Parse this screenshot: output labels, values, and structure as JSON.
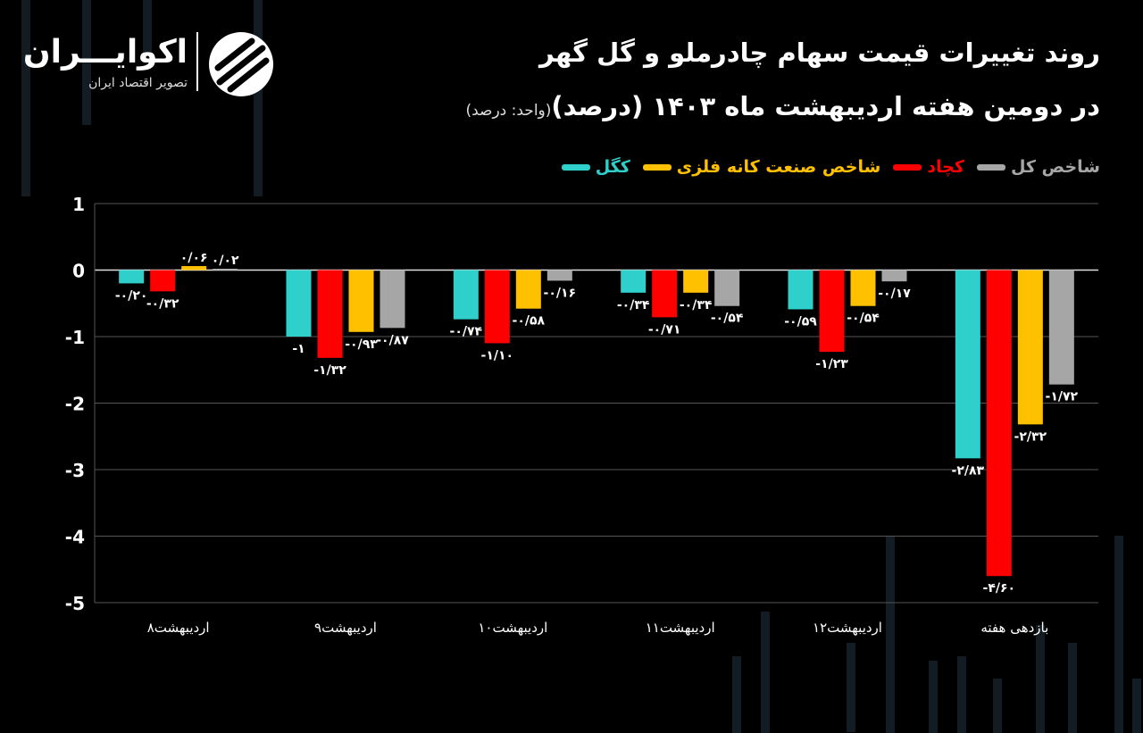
{
  "header": {
    "title": "روند تغییرات قیمت سهام چادرملو و گل گهر",
    "subtitle": "در دومین هفته اردیبهشت ماه ۱۴۰۳ (درصد)",
    "unit_note": "(واحد: درصد)"
  },
  "logo": {
    "name": "اکوایـــران",
    "tagline": "تصویر اقتصاد ایران",
    "icon": "ekoiran-logo-icon"
  },
  "colors": {
    "background": "#000000",
    "grid": "#555555",
    "axis_text": "#ffffff"
  },
  "chart_data": {
    "type": "bar",
    "categories": [
      "اردیبهشت۸",
      "اردیبهشت۹",
      "اردیبهشت۱۰",
      "اردیبهشت۱۱",
      "اردیبهشت۱۲",
      "بازدهی هفته"
    ],
    "ylim": [
      -5,
      1
    ],
    "yticks": [
      "1",
      "0",
      "-1",
      "-2",
      "-3",
      "-4",
      "-5"
    ],
    "grid": true,
    "legend_position": "top-right",
    "series": [
      {
        "name": "کگل",
        "color": "#2fd0cc",
        "values": [
          -0.2,
          -1,
          -0.74,
          -0.34,
          -0.59,
          -2.83
        ],
        "labels": [
          "-۰/۲۰",
          "-۱",
          "-۰/۷۴",
          "-۰/۳۴",
          "-۰/۵۹",
          "-۲/۸۳"
        ]
      },
      {
        "name": "کچاد",
        "color": "#ff0000",
        "values": [
          -0.32,
          -1.32,
          -1.1,
          -0.71,
          -1.23,
          -4.6
        ],
        "labels": [
          "-۰/۳۲",
          "-۱/۳۲",
          "-۱/۱۰",
          "-۰/۷۱",
          "-۱/۲۳",
          "-۴/۶۰"
        ]
      },
      {
        "name": "شاخص صنعت کانه فلزی",
        "color": "#ffc000",
        "values": [
          0.06,
          -0.93,
          -0.58,
          -0.34,
          -0.54,
          -2.32
        ],
        "labels": [
          "۰/۰۶",
          "-۰/۹۳",
          "-۰/۵۸",
          "-۰/۳۴",
          "-۰/۵۴",
          "-۲/۳۲"
        ]
      },
      {
        "name": "شاخص کل",
        "color": "#a6a6a6",
        "values": [
          0.02,
          -0.87,
          -0.16,
          -0.54,
          -0.17,
          -1.72
        ],
        "labels": [
          "۰/۰۲",
          "-۰/۸۷",
          "-۰/۱۶",
          "-۰/۵۴",
          "-۰/۱۷",
          "-۱/۷۲"
        ]
      }
    ]
  }
}
